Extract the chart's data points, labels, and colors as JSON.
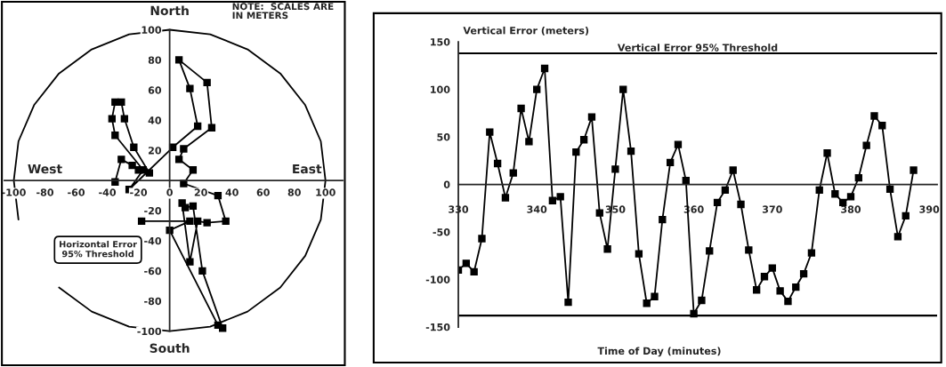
{
  "chart_data": [
    {
      "type": "line",
      "annotations": [
        "North",
        "NOTE:  SCALES ARE\nIN METERS",
        "West",
        "East",
        "South",
        "Horizontal Error\n95% Threshold"
      ],
      "xlim": [
        -106,
        111
      ],
      "ylim": [
        -122,
        118
      ],
      "xticks": [
        -100,
        -80,
        -60,
        -40,
        -20,
        0,
        20,
        40,
        60,
        80,
        100
      ],
      "yticks": [
        -100,
        -80,
        -60,
        -40,
        -20,
        20,
        40,
        60,
        80,
        100
      ],
      "series": [
        {
          "type": "line",
          "color": "#000000",
          "marker": "square",
          "x": [
            -35,
            -31,
            -24,
            -20,
            -13,
            -23,
            -29,
            -31,
            -35,
            -37,
            -35,
            -17,
            -26,
            2,
            18,
            13,
            6,
            24,
            27,
            9,
            6,
            15,
            9,
            31,
            36,
            24,
            18,
            13,
            8,
            10,
            15,
            21,
            34,
            31,
            0,
            13,
            -18
          ],
          "values": [
            -1,
            14,
            10,
            7,
            5,
            22,
            41,
            52,
            52,
            41,
            30,
            7,
            -6,
            22,
            36,
            61,
            80,
            65,
            35,
            21,
            14,
            7,
            -2,
            -10,
            -27,
            -28,
            -27,
            -54,
            -15,
            -18,
            -17,
            -60,
            -98,
            -96,
            -33,
            -27,
            -27
          ]
        },
        {
          "type": "line",
          "color": "#000000",
          "marker": "none",
          "x": [
            -71,
            -50,
            -26,
            0,
            26,
            50,
            71,
            87,
            97,
            100,
            97,
            87,
            71,
            50,
            26,
            0,
            -26,
            -50,
            -71,
            -87,
            -97,
            -100,
            -97
          ],
          "values": [
            -71,
            -87,
            -97,
            -100,
            -97,
            -87,
            -71,
            -50,
            -26,
            0,
            26,
            50,
            71,
            87,
            97,
            100,
            97,
            87,
            71,
            50,
            26,
            0,
            -26
          ]
        }
      ],
      "marker": "square",
      "line_style": "solid",
      "grid": false,
      "legend": false
    },
    {
      "type": "line",
      "xlabel": "Time of Day (minutes)",
      "ylabel": "Vertical Error (meters)",
      "xlim": [
        330,
        391
      ],
      "ylim": [
        -150,
        150
      ],
      "xticks": [
        330,
        340,
        350,
        360,
        370,
        380,
        390
      ],
      "yticks": [
        -150,
        -100,
        -50,
        0,
        50,
        100,
        150
      ],
      "series": [
        {
          "color": "#000000",
          "x": [
            330,
            331,
            332,
            333,
            334,
            335,
            336,
            337,
            338,
            339,
            340,
            341,
            342,
            343,
            344,
            345,
            346,
            347,
            348,
            349,
            350,
            351,
            352,
            353,
            354,
            355,
            356,
            357,
            358,
            359,
            360,
            361,
            362,
            363,
            364,
            365,
            366,
            367,
            368,
            369,
            370,
            371,
            372,
            373,
            374,
            375,
            376,
            377,
            378,
            379,
            380,
            381,
            382,
            383,
            384,
            385,
            386,
            387,
            388
          ],
          "values": [
            -90,
            -83,
            -92,
            -57,
            55,
            22,
            -14,
            12,
            80,
            45,
            100,
            122,
            -17,
            -13,
            -124,
            34,
            47,
            71,
            -30,
            -68,
            16,
            100,
            35,
            -73,
            -125,
            -118,
            -37,
            23,
            42,
            4,
            -136,
            -122,
            -70,
            -19,
            -6,
            15,
            -21,
            -69,
            -111,
            -97,
            -88,
            -112,
            -123,
            -108,
            -94,
            -72,
            -6,
            33,
            -10,
            -19,
            -13,
            7,
            41,
            72,
            62,
            -5,
            -55,
            -33,
            15
          ]
        }
      ],
      "ref_lines": [
        {
          "axis": "y",
          "value": 138,
          "label": "Vertical Error 95% Threshold",
          "color": "#000000"
        },
        {
          "axis": "y",
          "value": -138,
          "label": null,
          "color": "#000000"
        }
      ],
      "marker": "square",
      "line_style": "solid",
      "grid": false,
      "legend": false
    }
  ]
}
